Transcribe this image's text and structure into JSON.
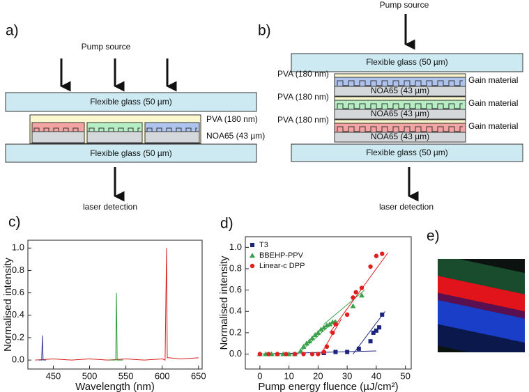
{
  "panel_labels": [
    "a)",
    "b)",
    "c)",
    "d)",
    "e)"
  ],
  "diagram_a": {
    "pump": "Pump source",
    "top_glass": "Flexible glass (50 µm)",
    "pva": "PVA (180 nm)",
    "noa": "NOA65 (43 µm)",
    "bottom_glass": "Flexible glass (50 µm)",
    "detection": "laser detection"
  },
  "diagram_b": {
    "pump": "Pump source",
    "top_glass": "Flexible glass (50 µm)",
    "layers": [
      {
        "pva": "PVA (180 nm)",
        "gain": "Gain material",
        "noa": "NOA65 (43 µm)"
      },
      {
        "pva": "PVA (180 nm)",
        "gain": "Gain material",
        "noa": "NOA65 (43 µm)"
      },
      {
        "pva": "PVA (180 nm)",
        "gain": "Gain material",
        "noa": "NOA65 (43 µm)"
      }
    ],
    "bottom_glass": "Flexible glass (50 µm)",
    "detection": "laser detection"
  },
  "chart_data": [
    {
      "type": "line",
      "xlabel": "Wavelength (nm)",
      "ylabel": "Normalised intensity",
      "xlim": [
        415,
        655
      ],
      "ylim": [
        -0.08,
        1.07
      ],
      "xticks": [
        450,
        500,
        550,
        600,
        650
      ],
      "yticks": [
        {
          "value": 0,
          "label": "0.0"
        },
        0.2,
        0.4,
        0.6,
        0.8,
        {
          "value": 1,
          "label": "1.0"
        }
      ],
      "series": [
        {
          "color": "#d62020",
          "x": [
            425,
            450,
            475,
            500,
            525,
            550,
            575,
            600,
            604,
            605,
            606,
            607,
            610,
            625,
            650
          ],
          "values": [
            0,
            0.01,
            0,
            0.01,
            0,
            0.01,
            0,
            0.01,
            0,
            0.5,
            1.0,
            0.02,
            0.02,
            0.01,
            0.02
          ]
        },
        {
          "color": "#2e9a3a",
          "x": [
            528,
            536,
            537,
            538,
            546
          ],
          "values": [
            0,
            0,
            0.6,
            0,
            0
          ]
        },
        {
          "color": "#3a3a9a",
          "x": [
            430,
            434,
            435,
            436,
            440
          ],
          "values": [
            0,
            0,
            0.22,
            0,
            0
          ]
        }
      ]
    },
    {
      "type": "scatter",
      "xlabel": "Pump energy fluence (µJ/cm²)",
      "ylabel": "Normalised intensity",
      "xlim": [
        -5,
        52
      ],
      "ylim": [
        -0.14,
        1.1
      ],
      "xticks": [
        0,
        10,
        20,
        30,
        40,
        50
      ],
      "yticks": [
        {
          "value": 0,
          "label": "0.0"
        },
        0.2,
        0.4,
        0.6,
        0.8,
        {
          "value": 1,
          "label": "1.0"
        }
      ],
      "legend": "upper left",
      "series": [
        {
          "name": "T3",
          "color": "#1a237e",
          "marker": "square",
          "x": [
            22,
            26,
            30,
            34,
            38,
            39,
            40,
            41,
            42
          ],
          "values": [
            0.01,
            0.02,
            0.02,
            0.05,
            0.12,
            0.2,
            0.22,
            0.25,
            0.37
          ]
        },
        {
          "name": "BBEHP-PPV",
          "color": "#3aa14a",
          "marker": "triangle",
          "x": [
            0,
            2,
            4,
            6,
            8,
            10,
            12,
            14,
            15,
            16,
            17,
            18,
            19,
            20,
            21,
            22,
            23,
            24,
            25,
            26,
            32,
            35
          ],
          "values": [
            0,
            0,
            0,
            0,
            0,
            0,
            0,
            0.03,
            0.07,
            0.1,
            0.12,
            0.15,
            0.18,
            0.2,
            0.23,
            0.25,
            0.27,
            0.28,
            0.3,
            0.3,
            0.45,
            0.55
          ]
        },
        {
          "name": "Linear-c DPP",
          "color": "#e02020",
          "marker": "circle",
          "x": [
            0,
            3,
            6,
            9,
            12,
            15,
            18,
            20,
            22,
            23,
            25,
            26,
            30,
            32,
            33,
            35,
            38,
            40,
            42
          ],
          "values": [
            0,
            0,
            0,
            0,
            0,
            0,
            0,
            0,
            0.02,
            0.07,
            0.2,
            0.28,
            0.37,
            0.53,
            0.58,
            0.62,
            0.82,
            0.92,
            0.94
          ]
        }
      ],
      "fits": [
        {
          "color": "#1a237e",
          "x": [
            0,
            40
          ],
          "values": [
            0,
            0.03
          ]
        },
        {
          "color": "#1a237e",
          "x": [
            32,
            43
          ],
          "values": [
            0,
            0.4
          ]
        },
        {
          "color": "#3aa14a",
          "x": [
            0,
            13,
            26
          ],
          "values": [
            0,
            0,
            0.32
          ]
        },
        {
          "color": "#3aa14a",
          "x": [
            22,
            36
          ],
          "values": [
            0.28,
            0.6
          ]
        },
        {
          "color": "#e02020",
          "x": [
            21,
            28
          ],
          "values": [
            0,
            0.33
          ]
        },
        {
          "color": "#e02020",
          "x": [
            24,
            44
          ],
          "values": [
            0.2,
            0.95
          ]
        }
      ]
    }
  ]
}
